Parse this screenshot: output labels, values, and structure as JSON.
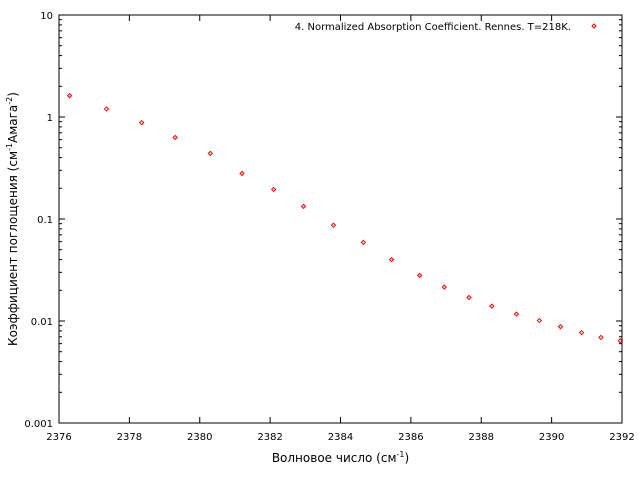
{
  "chart_data": {
    "type": "scatter",
    "xlabel": {
      "base": "Волновое число (см",
      "sup": "-1",
      "tail": ")"
    },
    "ylabel": {
      "base": "Коэффициент поглощения (см",
      "sup1": "-1",
      "mid": "Амага",
      "sup2": "-2",
      "tail": ")"
    },
    "xlim": [
      2376,
      2392
    ],
    "ylim": [
      0.001,
      10
    ],
    "yscale": "log",
    "grid": false,
    "legend_position": "top-right",
    "x_ticks": [
      2376,
      2378,
      2380,
      2382,
      2384,
      2386,
      2388,
      2390,
      2392
    ],
    "x_tick_labels": [
      "2376",
      "2378",
      "2380",
      "2382",
      "2384",
      "2386",
      "2388",
      "2390",
      "2392"
    ],
    "y_ticks": [
      0.001,
      0.01,
      0.1,
      1,
      10
    ],
    "y_tick_labels": [
      "0.001",
      "0.01",
      "0.1",
      "1",
      "10"
    ],
    "series": [
      {
        "name": "4. Normalized Absorption Coefficient. Rennes. T=218K.",
        "color": "#ff0000",
        "marker": "diamond",
        "x": [
          2376.3,
          2377.35,
          2378.35,
          2379.3,
          2380.3,
          2381.2,
          2382.1,
          2382.95,
          2383.8,
          2384.65,
          2385.45,
          2386.25,
          2386.95,
          2387.65,
          2388.3,
          2389.0,
          2389.65,
          2390.25,
          2390.85,
          2391.4,
          2391.95
        ],
        "y": [
          1.62,
          1.2,
          0.88,
          0.63,
          0.44,
          0.28,
          0.195,
          0.133,
          0.087,
          0.059,
          0.04,
          0.028,
          0.0215,
          0.017,
          0.014,
          0.0117,
          0.0101,
          0.0088,
          0.0077,
          0.0069,
          0.0064
        ]
      }
    ]
  }
}
